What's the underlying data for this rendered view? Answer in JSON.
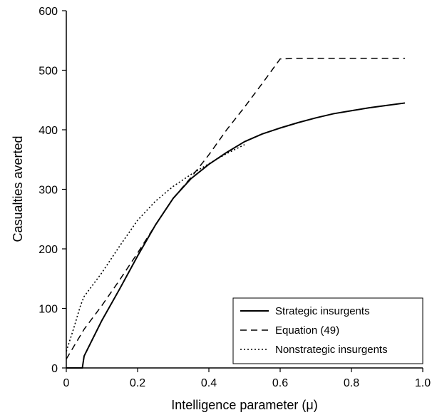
{
  "chart_data": {
    "type": "line",
    "title": "",
    "xlabel": "Intelligence parameter (μ)",
    "ylabel": "Casualties averted",
    "xlim": [
      0,
      1.0
    ],
    "ylim": [
      0,
      600
    ],
    "x_ticks": [
      "0",
      "0.2",
      "0.4",
      "0.6",
      "0.8",
      "1.0"
    ],
    "y_ticks": [
      "0",
      "100",
      "200",
      "300",
      "400",
      "500",
      "600"
    ],
    "grid": false,
    "legend_position": "bottom-right",
    "series": [
      {
        "name": "Strategic insurgents",
        "style": "solid",
        "x": [
          0.0,
          0.045,
          0.05,
          0.1,
          0.15,
          0.2,
          0.25,
          0.3,
          0.35,
          0.4,
          0.45,
          0.5,
          0.55,
          0.6,
          0.65,
          0.7,
          0.75,
          0.8,
          0.85,
          0.9,
          0.95
        ],
        "y": [
          0,
          0,
          20,
          80,
          133,
          188,
          240,
          285,
          318,
          342,
          362,
          380,
          393,
          403,
          412,
          420,
          427,
          432,
          437,
          441,
          445
        ]
      },
      {
        "name": "Equation (49)",
        "style": "dashed",
        "x": [
          0.0,
          0.05,
          0.1,
          0.15,
          0.2,
          0.25,
          0.3,
          0.35,
          0.4,
          0.45,
          0.5,
          0.55,
          0.6,
          0.65,
          0.7,
          0.8,
          0.9,
          0.95
        ],
        "y": [
          15,
          65,
          105,
          148,
          193,
          240,
          285,
          320,
          358,
          400,
          438,
          478,
          519,
          520,
          520,
          520,
          520,
          520
        ]
      },
      {
        "name": "Nonstrategic insurgents",
        "style": "dotted",
        "x": [
          0.0,
          0.02,
          0.04,
          0.05,
          0.1,
          0.15,
          0.2,
          0.25,
          0.3,
          0.35,
          0.4,
          0.45,
          0.5
        ],
        "y": [
          28,
          65,
          105,
          120,
          160,
          205,
          248,
          280,
          305,
          325,
          343,
          360,
          375
        ]
      }
    ]
  }
}
